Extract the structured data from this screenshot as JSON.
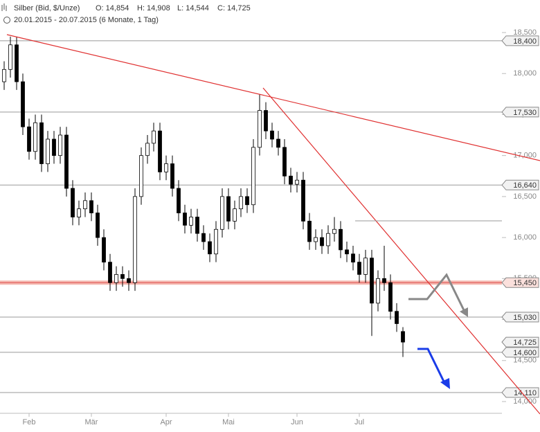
{
  "chart_data": {
    "type": "candlestick",
    "title": "Silber (Bid, $/Unze)",
    "ohlc": [
      "O: 14,854",
      "H: 14,908",
      "L: 14,544",
      "C: 14,725"
    ],
    "subtitle": "20.01.2015 - 20.07.2015 (6 Monate, 1 Tag)",
    "categories": [
      null,
      null,
      null,
      null,
      "Feb",
      null,
      null,
      null,
      null,
      null,
      null,
      null,
      null,
      null,
      "Mär",
      null,
      null,
      null,
      null,
      null,
      null,
      null,
      null,
      null,
      null,
      null,
      "Apr",
      null,
      null,
      null,
      null,
      null,
      null,
      null,
      null,
      null,
      "Mai",
      null,
      null,
      null,
      null,
      null,
      null,
      null,
      null,
      null,
      null,
      "Jun",
      null,
      null,
      null,
      null,
      null,
      null,
      null,
      null,
      null,
      "Jul",
      null,
      null,
      null,
      null,
      null,
      null,
      null
    ],
    "open": [
      17.9,
      18.05,
      18.35,
      17.9,
      17.35,
      17.05,
      17.4,
      16.9,
      17.2,
      17.0,
      17.25,
      16.6,
      16.25,
      16.35,
      16.45,
      16.3,
      16.0,
      15.7,
      15.45,
      15.55,
      15.5,
      15.45,
      16.5,
      17.0,
      17.15,
      17.3,
      16.8,
      16.9,
      16.6,
      16.3,
      16.15,
      16.25,
      16.05,
      15.95,
      15.8,
      16.1,
      16.5,
      16.2,
      16.35,
      16.5,
      16.4,
      17.1,
      17.55,
      17.3,
      17.2,
      17.1,
      16.75,
      16.65,
      16.7,
      16.2,
      15.95,
      16.0,
      15.9,
      16.05,
      16.1,
      15.85,
      15.8,
      15.7,
      15.55,
      15.75,
      15.2,
      15.5,
      15.45,
      15.1,
      14.854
    ],
    "high": [
      18.15,
      18.45,
      18.45,
      18.0,
      17.45,
      17.5,
      17.5,
      17.3,
      17.3,
      17.35,
      17.35,
      16.7,
      16.45,
      16.55,
      16.55,
      16.4,
      16.1,
      15.8,
      15.65,
      15.65,
      15.6,
      16.6,
      17.1,
      17.25,
      17.4,
      17.4,
      17.0,
      17.0,
      16.7,
      16.4,
      16.35,
      16.35,
      16.15,
      16.05,
      16.2,
      16.6,
      16.6,
      16.45,
      16.6,
      16.6,
      17.2,
      17.75,
      17.65,
      17.4,
      17.3,
      17.2,
      16.85,
      16.8,
      16.8,
      16.3,
      16.1,
      16.1,
      16.15,
      16.25,
      16.2,
      15.95,
      15.9,
      15.8,
      15.85,
      15.85,
      15.6,
      15.9,
      15.55,
      15.2,
      14.908
    ],
    "low": [
      17.8,
      17.95,
      17.8,
      17.25,
      16.95,
      16.95,
      16.8,
      16.8,
      16.9,
      16.9,
      16.5,
      16.15,
      16.15,
      16.25,
      16.2,
      15.9,
      15.6,
      15.35,
      15.35,
      15.4,
      15.35,
      15.35,
      16.4,
      16.9,
      17.05,
      16.7,
      16.7,
      16.5,
      16.2,
      16.05,
      16.05,
      15.95,
      15.85,
      15.7,
      15.7,
      16.0,
      16.1,
      16.1,
      16.25,
      16.3,
      16.3,
      17.0,
      17.2,
      17.1,
      17.0,
      16.65,
      16.55,
      16.55,
      16.1,
      15.85,
      15.85,
      15.8,
      15.8,
      15.95,
      15.75,
      15.7,
      15.6,
      15.45,
      15.45,
      14.8,
      15.1,
      15.35,
      15.0,
      14.85,
      14.544
    ],
    "close": [
      18.05,
      18.35,
      17.9,
      17.35,
      17.05,
      17.4,
      16.9,
      17.2,
      17.0,
      17.25,
      16.6,
      16.25,
      16.35,
      16.45,
      16.3,
      16.0,
      15.7,
      15.45,
      15.55,
      15.5,
      15.45,
      16.5,
      17.0,
      17.15,
      17.3,
      16.8,
      16.9,
      16.6,
      16.3,
      16.15,
      16.25,
      16.05,
      15.95,
      15.8,
      16.1,
      16.5,
      16.2,
      16.35,
      16.5,
      16.4,
      17.1,
      17.55,
      17.3,
      17.2,
      17.1,
      16.75,
      16.65,
      16.7,
      16.2,
      15.95,
      16.0,
      15.9,
      16.05,
      16.1,
      15.85,
      15.8,
      15.7,
      15.55,
      15.75,
      15.2,
      15.5,
      15.45,
      15.1,
      14.95,
      14.725
    ],
    "ylim": [
      13.75,
      18.5
    ],
    "yticks": [
      {
        "value": 14.0,
        "label": "14,000"
      },
      {
        "value": 14.5,
        "label": "14,500"
      },
      {
        "value": 15.0,
        "label": "15,000"
      },
      {
        "value": 15.5,
        "label": "15,500"
      },
      {
        "value": 16.0,
        "label": "16,000"
      },
      {
        "value": 16.5,
        "label": "16,500"
      },
      {
        "value": 17.0,
        "label": "17,000"
      },
      {
        "value": 17.5,
        "label": "17,500"
      },
      {
        "value": 18.0,
        "label": "18,000"
      },
      {
        "value": 18.5,
        "label": "18,500"
      }
    ],
    "levels": [
      {
        "value": 18.4,
        "label": "18,400"
      },
      {
        "value": 17.53,
        "label": "17,530"
      },
      {
        "value": 16.64,
        "label": "16,640"
      },
      {
        "value": 15.45,
        "label": "15,450"
      },
      {
        "value": 15.03,
        "label": "15,030"
      },
      {
        "value": 14.725,
        "label": "14,725"
      },
      {
        "value": 14.6,
        "label": "14,600"
      },
      {
        "value": 14.11,
        "label": "14,110"
      }
    ],
    "highlight_level": 3,
    "current_level": 5
  }
}
